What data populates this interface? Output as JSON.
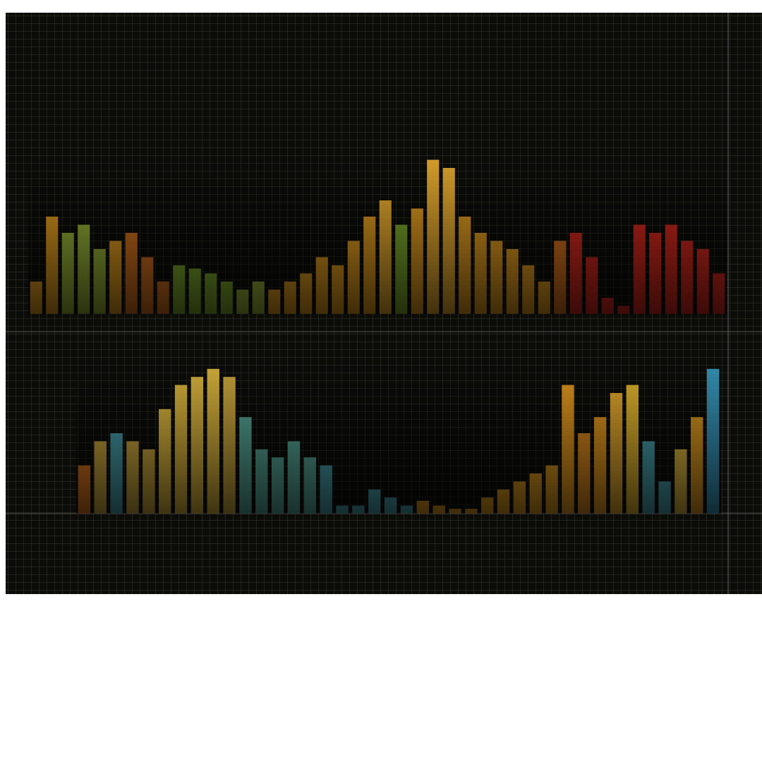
{
  "chart_data": [
    {
      "type": "bar",
      "ylim": [
        0,
        100
      ],
      "values": [
        20,
        60,
        50,
        55,
        40,
        45,
        50,
        35,
        20,
        30,
        28,
        25,
        20,
        15,
        20,
        15,
        20,
        25,
        35,
        30,
        45,
        60,
        70,
        55,
        65,
        95,
        90,
        60,
        50,
        45,
        40,
        30,
        20,
        45,
        50,
        35,
        10,
        5,
        55,
        50,
        55,
        45,
        40,
        25
      ],
      "colors": [
        "#e8a020",
        "#e8a020",
        "#9cb83a",
        "#9cb83a",
        "#9cb83a",
        "#e8a020",
        "#d9731e",
        "#d9731e",
        "#d9731e",
        "#7fae2e",
        "#7fae2e",
        "#7fae2e",
        "#7fae2e",
        "#9cb83a",
        "#9cb83a",
        "#e8a020",
        "#e8a020",
        "#e8a020",
        "#e8a020",
        "#e8a020",
        "#e8a020",
        "#e8a020",
        "#f0b030",
        "#7fae2e",
        "#e8a020",
        "#f0b030",
        "#f0b030",
        "#e8a020",
        "#e8a020",
        "#e8a020",
        "#e8a020",
        "#e8a020",
        "#e8a020",
        "#d9731e",
        "#d9281e",
        "#d9281e",
        "#d9281e",
        "#d9281e",
        "#d9281e",
        "#d9281e",
        "#d9281e",
        "#d9281e",
        "#d9281e",
        "#d9281e"
      ]
    },
    {
      "type": "bar",
      "ylim": [
        0,
        100
      ],
      "values": [
        30,
        45,
        50,
        45,
        40,
        65,
        80,
        85,
        90,
        85,
        60,
        40,
        35,
        45,
        35,
        30,
        5,
        5,
        15,
        10,
        5,
        8,
        5,
        3,
        3,
        10,
        15,
        20,
        25,
        30,
        80,
        50,
        60,
        75,
        80,
        45,
        20,
        40,
        60,
        90
      ],
      "colors": [
        "#e87a20",
        "#d8b040",
        "#4aa8b8",
        "#d8b040",
        "#d8b040",
        "#e8c040",
        "#e8c040",
        "#e8c040",
        "#e8c040",
        "#d8b040",
        "#5ab0a0",
        "#5ab0a0",
        "#5ab0a0",
        "#5ab0a0",
        "#5ab0a0",
        "#4aa8b8",
        "#4aa8b8",
        "#4aa8b8",
        "#4aa8b8",
        "#4aa8b8",
        "#4aa8b8",
        "#e8a020",
        "#e8a020",
        "#e8a020",
        "#e8a020",
        "#e8a020",
        "#e8a020",
        "#e8a020",
        "#e8a020",
        "#e8a020",
        "#f0a020",
        "#e89020",
        "#f0a020",
        "#f0b030",
        "#f0c030",
        "#4aa8b8",
        "#4aa8b8",
        "#e8c040",
        "#e8a020",
        "#3a9ec8"
      ]
    }
  ]
}
